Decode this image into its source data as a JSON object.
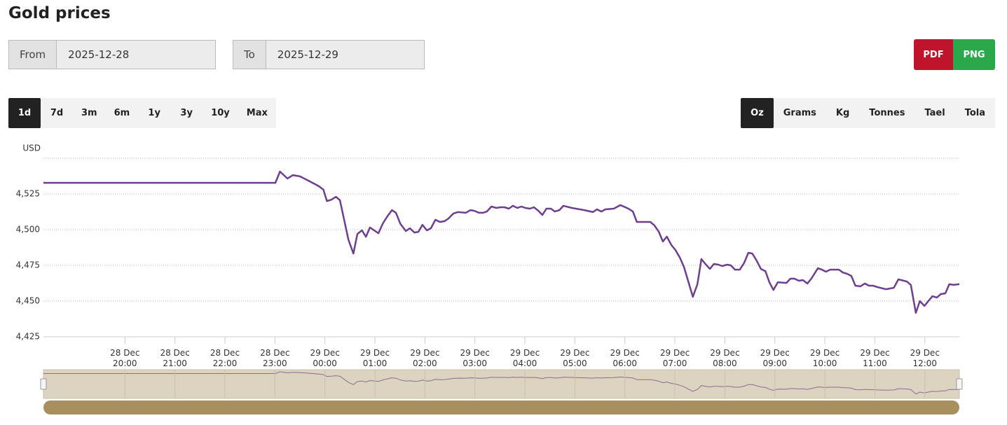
{
  "header": {
    "title": "Gold prices"
  },
  "date_range": {
    "from_label": "From",
    "from_value": "2025-12-28",
    "to_label": "To",
    "to_value": "2025-12-29"
  },
  "export": [
    "PDF",
    "PNG"
  ],
  "periods": [
    "1d",
    "7d",
    "3m",
    "6m",
    "1y",
    "3y",
    "10y",
    "Max"
  ],
  "active_period": 0,
  "units": [
    "Oz",
    "Grams",
    "Kg",
    "Tonnes",
    "Tael",
    "Tola"
  ],
  "active_unit": 0,
  "chart_data": {
    "type": "line",
    "y_label": "USD",
    "color": "#6f3f8f",
    "grid": true,
    "x": [
      18.37,
      23.01,
      23.1,
      23.25,
      23.36,
      23.5,
      23.67,
      23.88,
      23.97,
      24.04,
      24.13,
      24.22,
      24.3,
      24.47,
      24.57,
      24.65,
      24.74,
      24.82,
      24.9,
      25.07,
      25.16,
      25.24,
      25.34,
      25.42,
      25.51,
      25.62,
      25.7,
      25.79,
      25.87,
      25.95,
      26.04,
      26.12,
      26.21,
      26.3,
      26.39,
      26.47,
      26.57,
      26.66,
      26.82,
      26.91,
      26.99,
      27.08,
      27.16,
      27.24,
      27.33,
      27.43,
      27.51,
      27.59,
      27.68,
      27.76,
      27.85,
      27.93,
      28.01,
      28.1,
      28.18,
      28.27,
      28.35,
      28.43,
      28.52,
      28.6,
      28.69,
      28.77,
      28.94,
      29.19,
      29.36,
      29.44,
      29.53,
      29.61,
      29.78,
      29.91,
      30.07,
      30.16,
      30.24,
      30.51,
      30.59,
      30.68,
      30.76,
      30.84,
      30.93,
      31.01,
      31.1,
      31.18,
      31.26,
      31.36,
      31.45,
      31.53,
      31.61,
      31.7,
      31.78,
      31.87,
      31.95,
      32.04,
      32.12,
      32.2,
      32.3,
      32.39,
      32.47,
      32.55,
      32.64,
      32.72,
      32.81,
      32.89,
      32.97,
      33.06,
      33.23,
      33.31,
      33.39,
      33.48,
      33.56,
      33.65,
      33.73,
      33.86,
      33.94,
      34.02,
      34.11,
      34.28,
      34.36,
      34.45,
      34.53,
      34.61,
      34.71,
      34.8,
      34.88,
      34.96,
      35.05,
      35.22,
      35.38,
      35.47,
      35.64,
      35.72,
      35.82,
      35.9,
      35.99,
      36.07,
      36.15,
      36.24,
      36.32,
      36.41,
      36.49,
      36.57,
      36.69
    ],
    "values": [
      4532.8,
      4532.8,
      4540.7,
      4535.8,
      4538.2,
      4537.3,
      4534.3,
      4530.4,
      4528.0,
      4520.0,
      4521.0,
      4523.0,
      4520.6,
      4493.0,
      4483.3,
      4497.0,
      4499.5,
      4495.0,
      4501.5,
      4497.5,
      4504.4,
      4508.8,
      4513.7,
      4511.8,
      4504.0,
      4499.0,
      4501.0,
      4498.0,
      4498.5,
      4503.4,
      4499.5,
      4501.0,
      4506.9,
      4505.4,
      4505.9,
      4507.8,
      4511.3,
      4512.3,
      4511.8,
      4513.7,
      4513.2,
      4511.8,
      4511.8,
      4512.7,
      4516.2,
      4515.2,
      4515.7,
      4515.7,
      4514.7,
      4516.7,
      4515.2,
      4516.2,
      4515.2,
      4514.7,
      4515.7,
      4513.2,
      4510.3,
      4514.7,
      4514.7,
      4512.7,
      4513.7,
      4516.7,
      4515.2,
      4513.7,
      4512.3,
      4514.2,
      4512.7,
      4514.2,
      4514.7,
      4517.2,
      4514.7,
      4512.7,
      4505.4,
      4505.4,
      4503.0,
      4498.5,
      4491.7,
      4495.1,
      4489.2,
      4485.8,
      4480.4,
      4474.0,
      4464.7,
      4453.0,
      4461.8,
      4479.4,
      4476.0,
      4472.5,
      4476.0,
      4475.5,
      4474.5,
      4475.5,
      4475.0,
      4472.0,
      4472.0,
      4477.0,
      4483.8,
      4483.3,
      4478.0,
      4472.5,
      4471.0,
      4463.2,
      4457.8,
      4463.2,
      4462.7,
      4465.7,
      4465.7,
      4464.2,
      4464.7,
      4462.3,
      4465.7,
      4473.0,
      4472.0,
      4470.6,
      4472.0,
      4472.0,
      4470.0,
      4469.0,
      4467.6,
      4460.8,
      4460.3,
      4462.3,
      4460.8,
      4460.8,
      4459.8,
      4458.3,
      4459.3,
      4465.2,
      4463.7,
      4461.3,
      4441.7,
      4450.0,
      4446.6,
      4450.0,
      4453.4,
      4452.5,
      4454.9,
      4455.4,
      4461.8,
      4461.3,
      4461.8
    ],
    "xlim": [
      18.37,
      36.69
    ],
    "xticks": [
      {
        "value": 20,
        "label": "28 Dec\n20:00"
      },
      {
        "value": 21,
        "label": "28 Dec\n21:00"
      },
      {
        "value": 22,
        "label": "28 Dec\n22:00"
      },
      {
        "value": 23,
        "label": "28 Dec\n23:00"
      },
      {
        "value": 24,
        "label": "29 Dec\n00:00"
      },
      {
        "value": 25,
        "label": "29 Dec\n01:00"
      },
      {
        "value": 26,
        "label": "29 Dec\n02:00"
      },
      {
        "value": 27,
        "label": "29 Dec\n03:00"
      },
      {
        "value": 28,
        "label": "29 Dec\n04:00"
      },
      {
        "value": 29,
        "label": "29 Dec\n05:00"
      },
      {
        "value": 30,
        "label": "29 Dec\n06:00"
      },
      {
        "value": 31,
        "label": "29 Dec\n07:00"
      },
      {
        "value": 32,
        "label": "29 Dec\n08:00"
      },
      {
        "value": 33,
        "label": "29 Dec\n09:00"
      },
      {
        "value": 34,
        "label": "29 Dec\n10:00"
      },
      {
        "value": 35,
        "label": "29 Dec\n11:00"
      },
      {
        "value": 36,
        "label": "29 Dec\n12:00"
      }
    ],
    "ylim": [
      4425,
      4550
    ],
    "yticks": [
      {
        "value": 4425,
        "label": "4,425"
      },
      {
        "value": 4450,
        "label": "4,450"
      },
      {
        "value": 4475,
        "label": "4,475"
      },
      {
        "value": 4500,
        "label": "4,500"
      },
      {
        "value": 4525,
        "label": "4,525"
      }
    ]
  }
}
